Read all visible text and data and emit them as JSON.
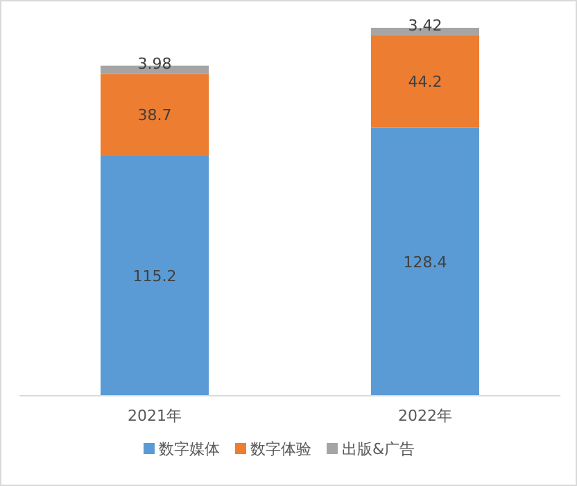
{
  "chart_data": {
    "type": "bar",
    "stacked": true,
    "data_labels": true,
    "legend": "bottom",
    "categories": [
      "2021年",
      "2022年"
    ],
    "series": [
      {
        "name": "数字媒体",
        "color": "#5b9bd5",
        "values": [
          115.2,
          128.4
        ]
      },
      {
        "name": "数字体验",
        "color": "#ed7d31",
        "values": [
          38.7,
          44.2
        ]
      },
      {
        "name": "出版&广告",
        "color": "#a5a5a5",
        "values": [
          3.98,
          3.42
        ]
      }
    ]
  }
}
